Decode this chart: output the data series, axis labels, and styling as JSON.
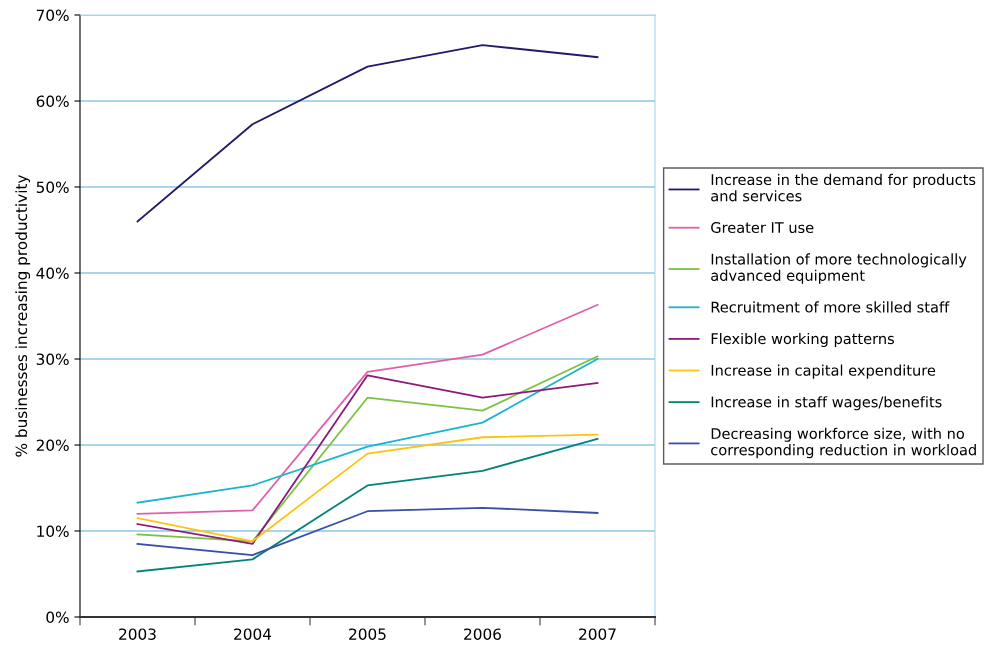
{
  "chart_data": {
    "type": "line",
    "ylabel": "% businesses increasing productivity",
    "categories": [
      "2003",
      "2004",
      "2005",
      "2006",
      "2007"
    ],
    "series": [
      {
        "name": "Increase in the demand for products and services",
        "color": "#1f1a6b",
        "values": [
          46.0,
          57.3,
          64.0,
          66.5,
          65.1
        ]
      },
      {
        "name": "Greater IT use",
        "color": "#e060a8",
        "values": [
          12.0,
          12.4,
          28.5,
          30.5,
          36.3
        ]
      },
      {
        "name": "Installation of more technologically advanced equipment",
        "color": "#7cc242",
        "values": [
          9.6,
          8.8,
          25.5,
          24.0,
          30.3
        ]
      },
      {
        "name": "Recruitment of more skilled staff",
        "color": "#18b4d0",
        "values": [
          13.3,
          15.3,
          19.8,
          22.6,
          30.0
        ]
      },
      {
        "name": "Flexible working patterns",
        "color": "#8b1a7a",
        "values": [
          10.8,
          8.5,
          28.1,
          25.5,
          27.2
        ]
      },
      {
        "name": "Increase in capital expenditure",
        "color": "#ffc20e",
        "values": [
          11.5,
          8.8,
          19.0,
          20.9,
          21.2
        ]
      },
      {
        "name": "Increase in staff wages/benefits",
        "color": "#00837a",
        "values": [
          5.3,
          6.7,
          15.3,
          17.0,
          20.7
        ]
      },
      {
        "name": "Decreasing workforce size, with no corresponding reduction in workload",
        "color": "#3a4ea8",
        "values": [
          8.5,
          7.2,
          12.3,
          12.7,
          12.1
        ]
      }
    ],
    "ylim": [
      0,
      70
    ],
    "yticks": [
      {
        "value": 0,
        "label": "0%"
      },
      {
        "value": 10,
        "label": "10%"
      },
      {
        "value": 20,
        "label": "20%"
      },
      {
        "value": 30,
        "label": "30%"
      },
      {
        "value": 40,
        "label": "40%"
      },
      {
        "value": 50,
        "label": "50%"
      },
      {
        "value": 60,
        "label": "60%"
      },
      {
        "value": 70,
        "label": "70%"
      }
    ],
    "grid": "y",
    "legend": "right",
    "marker": "none",
    "line_style": "solid"
  }
}
